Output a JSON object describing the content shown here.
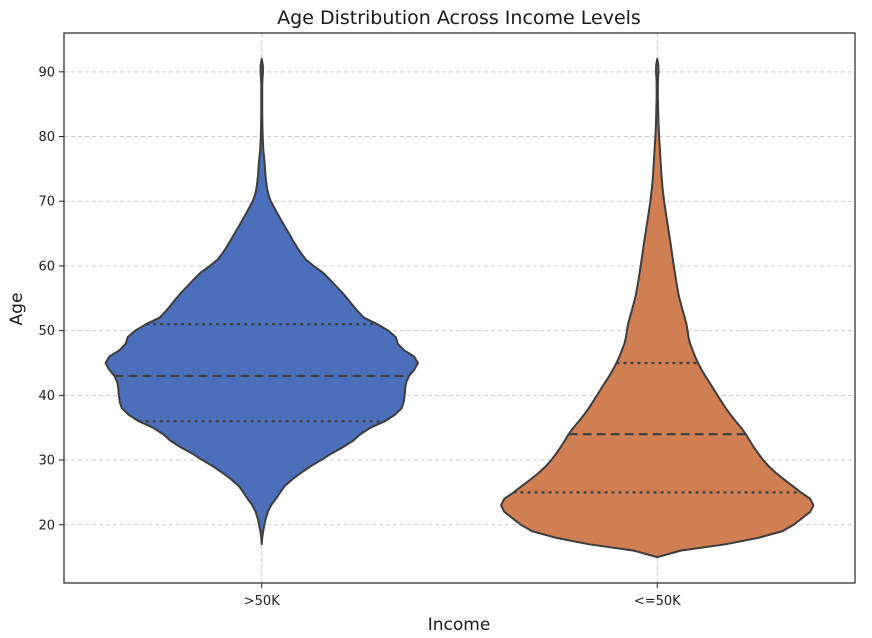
{
  "chart_data": {
    "type": "violin",
    "title": "Age Distribution Across Income Levels",
    "xlabel": "Income",
    "ylabel": "Age",
    "categories": [
      ">50K",
      "<=50K"
    ],
    "ylim": [
      11,
      96
    ],
    "yticks": [
      20,
      30,
      40,
      50,
      60,
      70,
      80,
      90
    ],
    "grid": true,
    "colors": [
      "#4c6fbb",
      "#d07f53"
    ],
    "series": [
      {
        "category": ">50K",
        "min": 17,
        "max": 92,
        "quartiles": {
          "q1": 36,
          "median": 43,
          "q3": 51
        },
        "density_profile": [
          [
            17,
            0.0
          ],
          [
            18,
            0.003
          ],
          [
            19,
            0.009
          ],
          [
            20,
            0.017
          ],
          [
            21,
            0.026
          ],
          [
            22,
            0.039
          ],
          [
            23,
            0.06
          ],
          [
            24,
            0.09
          ],
          [
            25,
            0.118
          ],
          [
            26,
            0.147
          ],
          [
            27,
            0.195
          ],
          [
            28,
            0.25
          ],
          [
            29,
            0.31
          ],
          [
            30,
            0.38
          ],
          [
            31,
            0.445
          ],
          [
            32,
            0.52
          ],
          [
            33,
            0.585
          ],
          [
            34,
            0.632
          ],
          [
            35,
            0.696
          ],
          [
            36,
            0.788
          ],
          [
            37,
            0.852
          ],
          [
            38,
            0.895
          ],
          [
            39,
            0.909
          ],
          [
            40,
            0.915
          ],
          [
            41,
            0.918
          ],
          [
            42,
            0.924
          ],
          [
            43,
            0.943
          ],
          [
            44,
            0.977
          ],
          [
            45,
            1.0
          ],
          [
            46,
            0.975
          ],
          [
            47,
            0.909
          ],
          [
            48,
            0.87
          ],
          [
            49,
            0.858
          ],
          [
            50,
            0.81
          ],
          [
            51,
            0.74
          ],
          [
            52,
            0.654
          ],
          [
            53,
            0.614
          ],
          [
            54,
            0.58
          ],
          [
            55,
            0.546
          ],
          [
            56,
            0.511
          ],
          [
            57,
            0.47
          ],
          [
            58,
            0.432
          ],
          [
            59,
            0.39
          ],
          [
            60,
            0.332
          ],
          [
            61,
            0.282
          ],
          [
            62,
            0.25
          ],
          [
            63,
            0.223
          ],
          [
            64,
            0.198
          ],
          [
            65,
            0.175
          ],
          [
            66,
            0.15
          ],
          [
            67,
            0.126
          ],
          [
            68,
            0.103
          ],
          [
            69,
            0.08
          ],
          [
            70,
            0.058
          ],
          [
            71,
            0.043
          ],
          [
            72,
            0.034
          ],
          [
            73,
            0.028
          ],
          [
            74,
            0.024
          ],
          [
            75,
            0.021
          ],
          [
            76,
            0.018
          ],
          [
            77,
            0.014
          ],
          [
            78,
            0.01
          ],
          [
            79,
            0.008
          ],
          [
            80,
            0.006
          ],
          [
            82,
            0.004
          ],
          [
            84,
            0.003
          ],
          [
            86,
            0.003
          ],
          [
            88,
            0.003
          ],
          [
            89,
            0.005
          ],
          [
            90,
            0.008
          ],
          [
            91,
            0.007
          ],
          [
            92,
            0.0
          ]
        ]
      },
      {
        "category": "<=50K",
        "min": 15,
        "max": 92,
        "quartiles": {
          "q1": 25,
          "median": 34,
          "q3": 45
        },
        "density_profile": [
          [
            15,
            0.0
          ],
          [
            16,
            0.15
          ],
          [
            17,
            0.44
          ],
          [
            18,
            0.65
          ],
          [
            19,
            0.8
          ],
          [
            20,
            0.873
          ],
          [
            21,
            0.926
          ],
          [
            22,
            0.979
          ],
          [
            23,
            1.0
          ],
          [
            24,
            0.979
          ],
          [
            25,
            0.92
          ],
          [
            26,
            0.866
          ],
          [
            27,
            0.812
          ],
          [
            28,
            0.76
          ],
          [
            29,
            0.715
          ],
          [
            30,
            0.678
          ],
          [
            31,
            0.647
          ],
          [
            32,
            0.618
          ],
          [
            33,
            0.592
          ],
          [
            34,
            0.567
          ],
          [
            35,
            0.537
          ],
          [
            36,
            0.502
          ],
          [
            37,
            0.469
          ],
          [
            38,
            0.439
          ],
          [
            39,
            0.412
          ],
          [
            40,
            0.386
          ],
          [
            41,
            0.36
          ],
          [
            42,
            0.334
          ],
          [
            43,
            0.307
          ],
          [
            44,
            0.283
          ],
          [
            45,
            0.261
          ],
          [
            46,
            0.242
          ],
          [
            47,
            0.226
          ],
          [
            48,
            0.21
          ],
          [
            49,
            0.2
          ],
          [
            50,
            0.194
          ],
          [
            51,
            0.187
          ],
          [
            52,
            0.176
          ],
          [
            53,
            0.164
          ],
          [
            54,
            0.153
          ],
          [
            55,
            0.142
          ],
          [
            56,
            0.133
          ],
          [
            57,
            0.126
          ],
          [
            58,
            0.119
          ],
          [
            60,
            0.106
          ],
          [
            62,
            0.094
          ],
          [
            64,
            0.082
          ],
          [
            66,
            0.069
          ],
          [
            68,
            0.056
          ],
          [
            70,
            0.044
          ],
          [
            72,
            0.034
          ],
          [
            74,
            0.027
          ],
          [
            76,
            0.022
          ],
          [
            78,
            0.017
          ],
          [
            80,
            0.012
          ],
          [
            82,
            0.008
          ],
          [
            84,
            0.006
          ],
          [
            86,
            0.004
          ],
          [
            88,
            0.004
          ],
          [
            89,
            0.005
          ],
          [
            90,
            0.008
          ],
          [
            91,
            0.007
          ],
          [
            92,
            0.0
          ]
        ]
      }
    ]
  }
}
